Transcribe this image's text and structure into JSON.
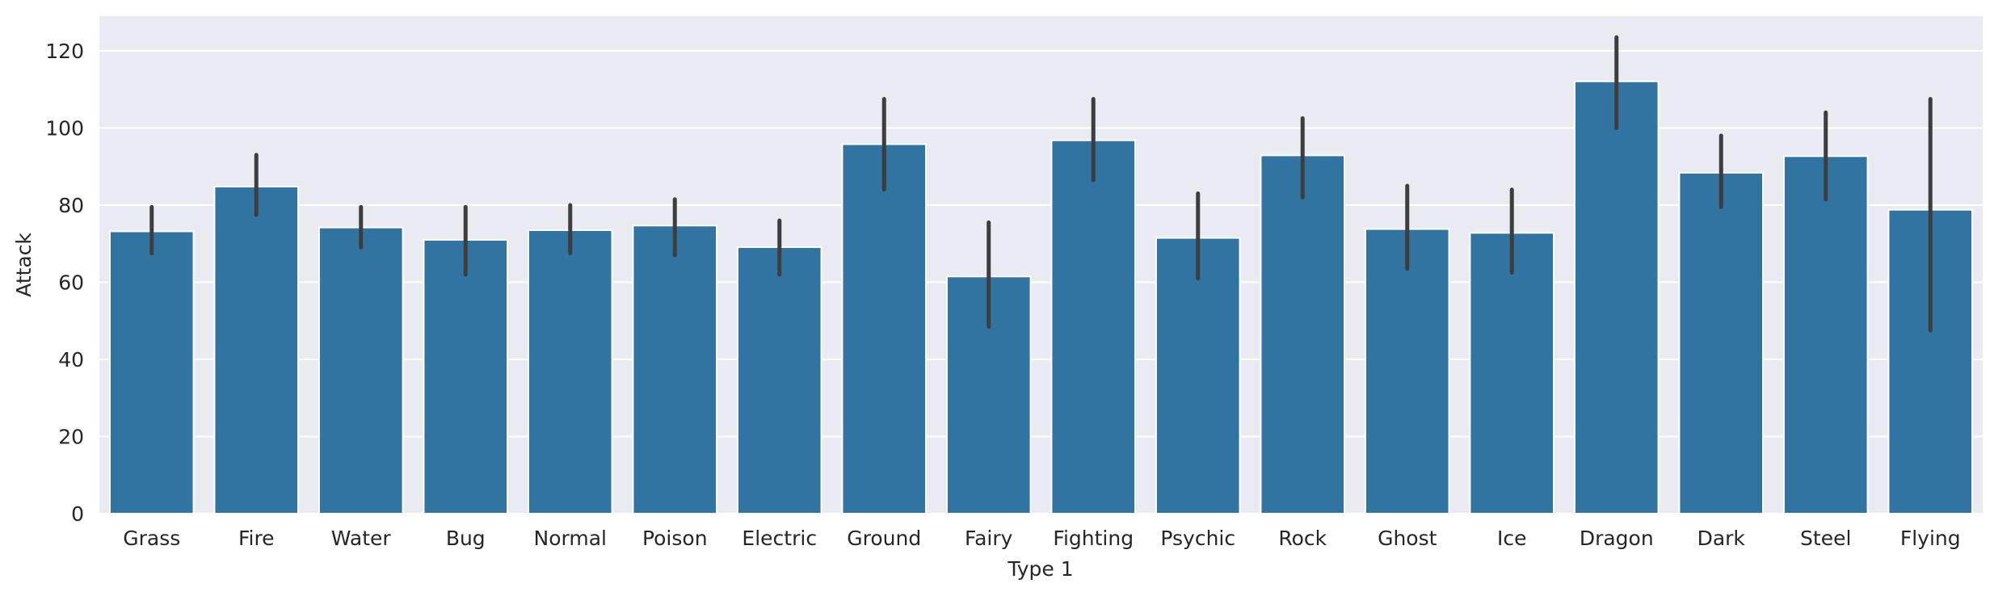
{
  "chart_data": {
    "type": "bar",
    "title": "",
    "xlabel": "Type 1",
    "ylabel": "Attack",
    "ylim": [
      0,
      129
    ],
    "yticks": [
      0,
      20,
      40,
      60,
      80,
      100,
      120
    ],
    "grid": true,
    "legend": "none",
    "colors": {
      "background": "#eaeaf2",
      "bar": "#3274a1",
      "error_bar": "#3d3d3d",
      "grid": "#ffffff"
    },
    "categories": [
      "Grass",
      "Fire",
      "Water",
      "Bug",
      "Normal",
      "Poison",
      "Electric",
      "Ground",
      "Fairy",
      "Fighting",
      "Psychic",
      "Rock",
      "Ghost",
      "Ice",
      "Dragon",
      "Dark",
      "Steel",
      "Flying"
    ],
    "values": [
      73.2,
      84.8,
      74.2,
      71.0,
      73.5,
      74.7,
      69.1,
      95.8,
      61.5,
      96.8,
      71.5,
      92.9,
      73.8,
      72.8,
      112.1,
      88.4,
      92.7,
      78.8
    ],
    "error_low": [
      67.5,
      77.5,
      69.0,
      62.0,
      67.5,
      67.0,
      62.0,
      84.0,
      48.5,
      86.5,
      61.0,
      82.0,
      63.5,
      62.5,
      100.0,
      79.5,
      81.5,
      47.5
    ],
    "error_high": [
      79.5,
      93.0,
      79.5,
      79.5,
      80.0,
      81.5,
      76.0,
      107.5,
      75.5,
      107.5,
      83.0,
      102.5,
      85.0,
      84.0,
      123.5,
      98.0,
      104.0,
      107.5
    ]
  }
}
